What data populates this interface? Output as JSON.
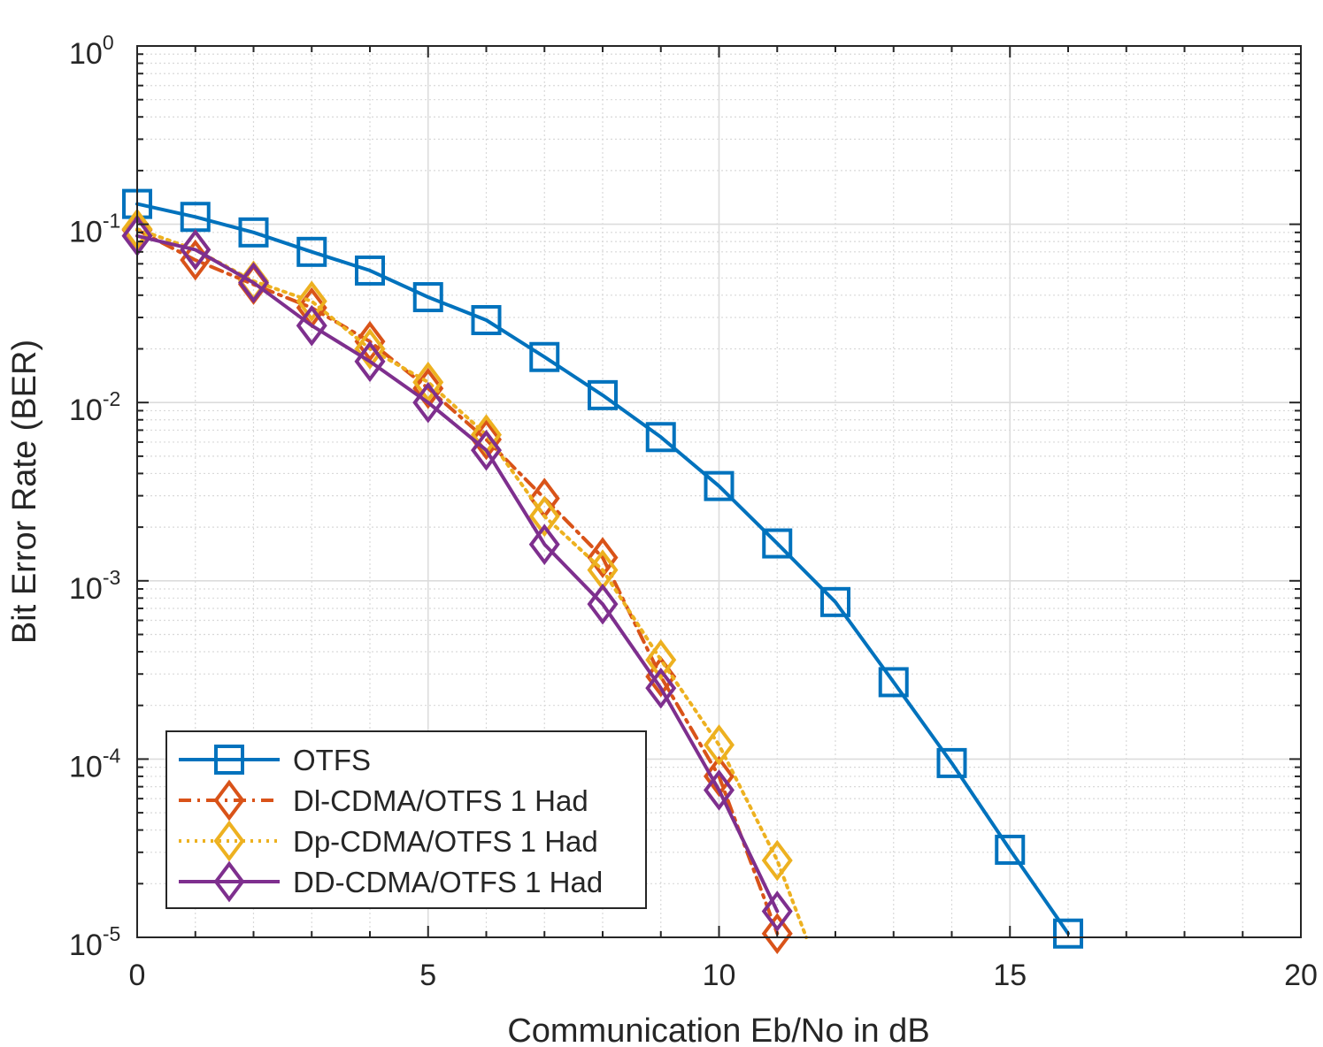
{
  "chart_data": {
    "type": "line",
    "title": "",
    "xlabel": "Communication Eb/No in dB",
    "ylabel": "Bit Error Rate (BER)",
    "xlim": [
      0,
      20
    ],
    "ylim": [
      1e-05,
      1
    ],
    "yscale": "log",
    "xticks": [
      {
        "value": 0,
        "label": "0"
      },
      {
        "value": 5,
        "label": "5"
      },
      {
        "value": 10,
        "label": "10"
      },
      {
        "value": 15,
        "label": "15"
      },
      {
        "value": 20,
        "label": "20"
      }
    ],
    "yticks": [
      {
        "exp": 0,
        "base": "10",
        "power": "0"
      },
      {
        "exp": -1,
        "base": "10",
        "power": "-1"
      },
      {
        "exp": -2,
        "base": "10",
        "power": "-2"
      },
      {
        "exp": -3,
        "base": "10",
        "power": "-3"
      },
      {
        "exp": -4,
        "base": "10",
        "power": "-4"
      },
      {
        "exp": -5,
        "base": "10",
        "power": "-5"
      }
    ],
    "grid": true,
    "minor_grid": true,
    "legend_position": "bottom-left",
    "series": [
      {
        "name": "OTFS",
        "color": "#0072BD",
        "line_style": "solid",
        "marker": "square",
        "x": [
          0,
          1,
          2,
          3,
          4,
          5,
          6,
          7,
          8,
          9,
          10,
          11,
          12,
          13,
          14,
          15,
          16
        ],
        "y": [
          0.13,
          0.11,
          0.09,
          0.07,
          0.055,
          0.039,
          0.029,
          0.018,
          0.011,
          0.0064,
          0.0034,
          0.00162,
          0.00076,
          0.00027,
          9.5e-05,
          3.1e-05,
          1.05e-05
        ]
      },
      {
        "name": "Dl-CDMA/OTFS 1 Had",
        "color": "#D95319",
        "line_style": "dashdot",
        "marker": "diamond",
        "x": [
          0,
          1,
          2,
          3,
          4,
          5,
          6,
          7,
          8,
          9,
          10,
          11
        ],
        "y": [
          0.093,
          0.063,
          0.046,
          0.034,
          0.022,
          0.012,
          0.0062,
          0.0029,
          0.00135,
          0.00029,
          8e-05,
          1.05e-05
        ]
      },
      {
        "name": "Dp-CDMA/OTFS 1 Had",
        "color": "#EDB120",
        "line_style": "dotted",
        "marker": "diamond",
        "x": [
          0,
          1,
          2,
          3,
          4,
          5,
          6,
          7,
          8,
          9,
          10,
          11,
          11.5
        ],
        "y": [
          0.094,
          0.072,
          0.048,
          0.037,
          0.02,
          0.013,
          0.0066,
          0.0023,
          0.00115,
          0.00036,
          0.00012,
          2.7e-05,
          1e-05
        ]
      },
      {
        "name": "DD-CDMA/OTFS 1 Had",
        "color": "#7E2F8E",
        "line_style": "solid",
        "marker": "diamond",
        "x": [
          0,
          1,
          2,
          3,
          4,
          5,
          6,
          7,
          8,
          9,
          10,
          11
        ],
        "y": [
          0.086,
          0.072,
          0.047,
          0.027,
          0.017,
          0.01,
          0.0054,
          0.0016,
          0.00074,
          0.00025,
          6.7e-05,
          1.4e-05
        ]
      }
    ]
  }
}
